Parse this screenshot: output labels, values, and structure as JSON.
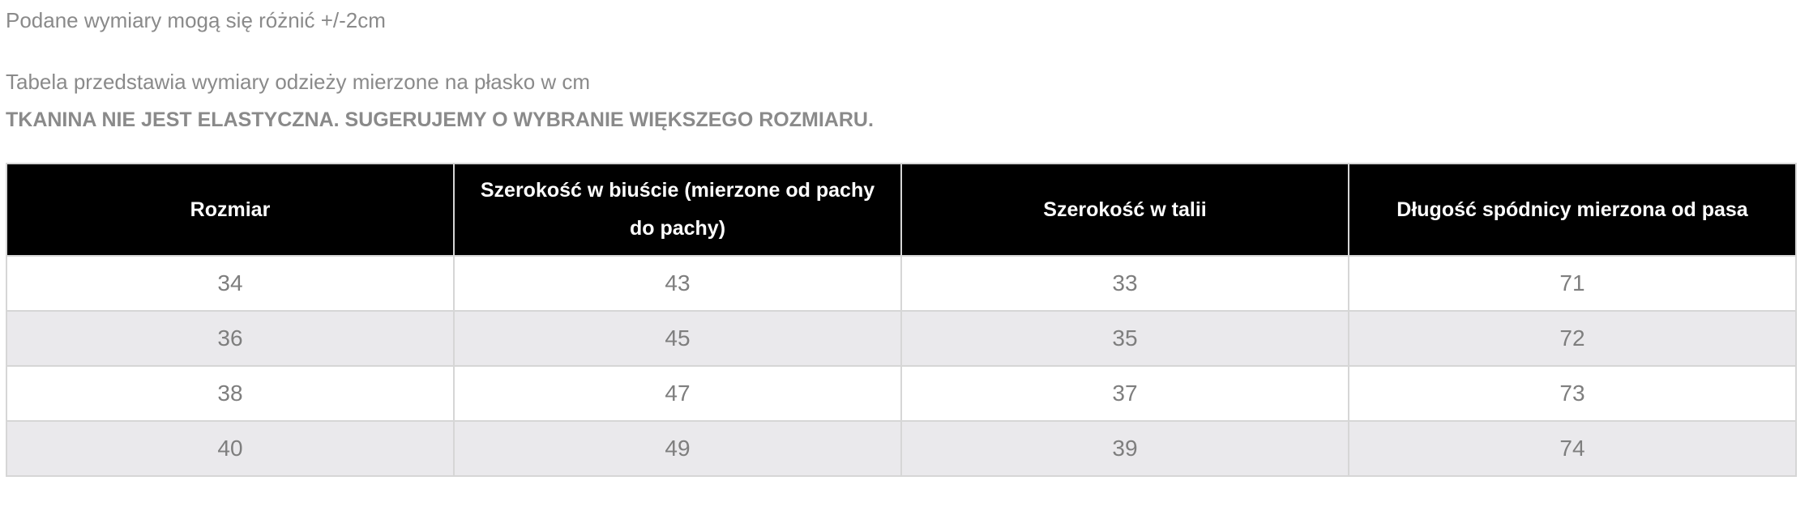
{
  "notes": {
    "tolerance": "Podane wymiary mogą się różnić +/-2cm",
    "flat_measure": "Tabela przedstawia wymiary odzieży mierzone na płasko w cm",
    "warning": "TKANINA NIE JEST ELASTYCZNA. SUGERUJEMY O WYBRANIE WIĘKSZEGO ROZMIARU."
  },
  "table": {
    "headers": [
      "Rozmiar",
      "Szerokość w biuście (mierzone od pachy do pachy)",
      "Szerokość w talii",
      "Długość spódnicy mierzona od pasa"
    ],
    "rows": [
      [
        "34",
        "43",
        "33",
        "71"
      ],
      [
        "36",
        "45",
        "35",
        "72"
      ],
      [
        "38",
        "47",
        "37",
        "73"
      ],
      [
        "40",
        "49",
        "39",
        "74"
      ]
    ]
  },
  "colors": {
    "header_bg": "#000000",
    "header_text": "#ffffff",
    "row_alt_bg": "#eae9ec",
    "text_gray": "#8a8a8a"
  }
}
